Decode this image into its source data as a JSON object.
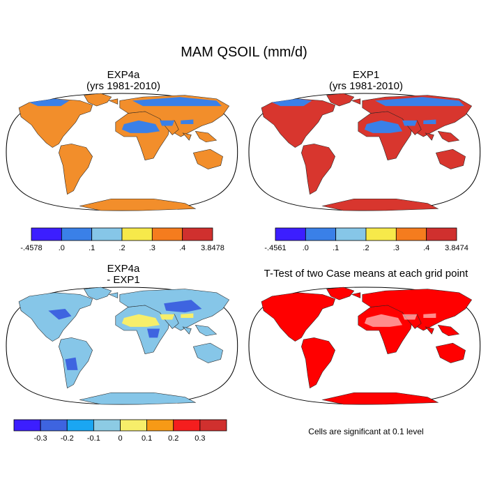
{
  "main_title": "MAM QSOIL (mm/d)",
  "panels": {
    "tl": {
      "title_line1": "EXP4a",
      "title_line2": "(yrs 1981-2010)"
    },
    "tr": {
      "title_line1": "EXP1",
      "title_line2": "(yrs 1981-2010)"
    },
    "bl": {
      "title_line1": "EXP4a",
      "title_line2": "- EXP1"
    },
    "br": {
      "title_line1": "T-Test of two Case means at each grid point"
    }
  },
  "colorbars": {
    "tl": {
      "colors": [
        "#3c1eff",
        "#3a80e8",
        "#86c6e8",
        "#f7e94a",
        "#f57c1e",
        "#d0302e"
      ],
      "labels": [
        "-.4578",
        ".0",
        ".1",
        ".2",
        ".3",
        ".4",
        "3.8478"
      ]
    },
    "tr": {
      "colors": [
        "#3c1eff",
        "#3a80e8",
        "#86c6e8",
        "#f7e94a",
        "#f57c1e",
        "#d0302e"
      ],
      "labels": [
        "-.4561",
        ".0",
        ".1",
        ".2",
        ".3",
        ".4",
        "3.8474"
      ]
    },
    "bl": {
      "colors": [
        "#3c1eff",
        "#3e64e0",
        "#1aa6f2",
        "#8ccbe4",
        "#f7ee6a",
        "#f79a16",
        "#f51e1e",
        "#d0302e"
      ],
      "labels": [
        "-0.3",
        "-0.2",
        "-0.1",
        "0",
        "0.1",
        "0.2",
        "0.3"
      ]
    }
  },
  "significance_note": "Cells are significant at 0.1 level",
  "colors": {
    "ocean": "#ffffff",
    "ttest_fill": "#ff0000",
    "tl_land": "#f28e2b",
    "tl_desert": "#3a80e8",
    "tl_boreal": "#3a80e8",
    "tr_land": "#d8362e",
    "tr_desert": "#3a80e8",
    "tr_boreal": "#3a80e8",
    "bl_land": "#86c6e8",
    "bl_wet": "#3e64e0",
    "bl_desert": "#f7ee6a"
  }
}
